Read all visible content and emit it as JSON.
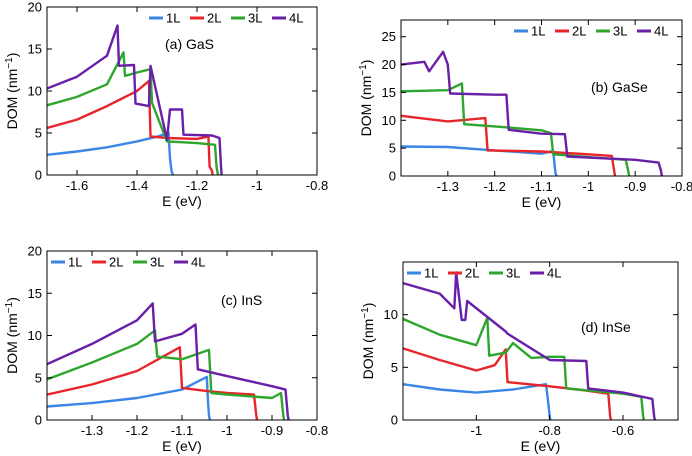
{
  "figure": {
    "panel_count": 4
  },
  "chart_data": [
    {
      "type": "line",
      "panel": "(a) GaS",
      "xlabel": "E (eV)",
      "ylabel": "DOM (nm⁻¹)",
      "xlim": [
        -1.7,
        -0.8
      ],
      "ylim": [
        0,
        20
      ],
      "xticks": [
        -1.6,
        -1.4,
        -1.2,
        -1,
        -0.8
      ],
      "xtick_labels": [
        "-1.6",
        "-1.4",
        "-1.2",
        "-1",
        "-0.8"
      ],
      "yticks": [
        0,
        5,
        10,
        15,
        20
      ],
      "ytick_labels": [
        "0",
        "5",
        "10",
        "15",
        "20"
      ],
      "legend_position": "top-right",
      "series": [
        {
          "name": "1L",
          "color": "#3a86e6",
          "x": [
            -1.7,
            -1.6,
            -1.5,
            -1.4,
            -1.33,
            -1.295,
            -1.29,
            -1.285,
            -1.28
          ],
          "y": [
            2.4,
            2.8,
            3.3,
            4.0,
            4.6,
            5.0,
            2.0,
            0.5,
            0
          ]
        },
        {
          "name": "2L",
          "color": "#e8252b",
          "x": [
            -1.7,
            -1.6,
            -1.5,
            -1.4,
            -1.36,
            -1.355,
            -1.3,
            -1.2,
            -1.162,
            -1.158,
            -1.15,
            -1.148
          ],
          "y": [
            5.6,
            6.6,
            8.2,
            10.0,
            11.2,
            4.6,
            4.4,
            4.3,
            4.6,
            1.0,
            0.5,
            0
          ]
        },
        {
          "name": "3L",
          "color": "#2ea62e",
          "x": [
            -1.7,
            -1.6,
            -1.5,
            -1.445,
            -1.44,
            -1.4,
            -1.355,
            -1.35,
            -1.3,
            -1.2,
            -1.14,
            -1.135,
            -1.13
          ],
          "y": [
            8.3,
            9.3,
            10.8,
            14.6,
            11.8,
            12.2,
            12.6,
            8.6,
            4.0,
            3.8,
            3.6,
            1.0,
            0
          ]
        },
        {
          "name": "4L",
          "color": "#6a1fa8",
          "x": [
            -1.7,
            -1.6,
            -1.5,
            -1.465,
            -1.46,
            -1.41,
            -1.405,
            -1.36,
            -1.355,
            -1.3,
            -1.29,
            -1.25,
            -1.245,
            -1.15,
            -1.125,
            -1.12,
            -1.118
          ],
          "y": [
            10.3,
            11.7,
            14.2,
            17.8,
            13.0,
            13.1,
            8.5,
            8.2,
            13.0,
            4.2,
            7.8,
            7.8,
            4.8,
            4.7,
            4.4,
            1.0,
            0
          ]
        }
      ]
    },
    {
      "type": "line",
      "panel": "(b) GaSe",
      "xlabel": "E (eV)",
      "ylabel": "DOM (nm⁻¹)",
      "xlim": [
        -1.4,
        -0.8
      ],
      "ylim": [
        0,
        28
      ],
      "xticks": [
        -1.3,
        -1.2,
        -1.1,
        -1,
        -0.9,
        -0.8
      ],
      "xtick_labels": [
        "-1.3",
        "-1.2",
        "-1.1",
        "-1",
        "-0.9",
        "-0.8"
      ],
      "yticks": [
        0,
        5,
        10,
        15,
        20,
        25
      ],
      "ytick_labels": [
        "0",
        "5",
        "10",
        "15",
        "20",
        "25"
      ],
      "legend_position": "top-right",
      "series": [
        {
          "name": "1L",
          "color": "#3a86e6",
          "x": [
            -1.4,
            -1.3,
            -1.2,
            -1.1,
            -1.075,
            -1.072,
            -1.07,
            -1.068
          ],
          "y": [
            5.3,
            5.2,
            4.6,
            4.0,
            4.5,
            2.0,
            0.5,
            0
          ]
        },
        {
          "name": "2L",
          "color": "#e8252b",
          "x": [
            -1.4,
            -1.3,
            -1.22,
            -1.215,
            -1.1,
            -1.0,
            -0.95,
            -0.945,
            -0.943
          ],
          "y": [
            10.8,
            9.8,
            10.4,
            4.6,
            4.4,
            3.9,
            3.6,
            1.0,
            0
          ]
        },
        {
          "name": "3L",
          "color": "#2ea62e",
          "x": [
            -1.4,
            -1.3,
            -1.27,
            -1.265,
            -1.2,
            -1.1,
            -1.08,
            -1.075,
            -1.0,
            -0.92,
            -0.915,
            -0.913
          ],
          "y": [
            15.2,
            15.4,
            16.6,
            9.3,
            8.9,
            8.2,
            7.7,
            3.9,
            3.4,
            2.9,
            1.0,
            0
          ]
        },
        {
          "name": "4L",
          "color": "#6a1fa8",
          "x": [
            -1.4,
            -1.35,
            -1.34,
            -1.31,
            -1.3,
            -1.295,
            -1.2,
            -1.175,
            -1.17,
            -1.1,
            -1.05,
            -1.045,
            -1.0,
            -0.9,
            -0.85,
            -0.845,
            -0.843
          ],
          "y": [
            20.0,
            20.5,
            18.8,
            22.3,
            20.0,
            14.8,
            14.6,
            14.6,
            8.3,
            7.6,
            7.5,
            3.5,
            3.3,
            2.9,
            2.4,
            1.0,
            0
          ]
        }
      ]
    },
    {
      "type": "line",
      "panel": "(c) InS",
      "xlabel": "E (eV)",
      "ylabel": "DOM (nm⁻¹)",
      "xlim": [
        -1.4,
        -0.8
      ],
      "ylim": [
        0,
        20
      ],
      "xticks": [
        -1.3,
        -1.2,
        -1.1,
        -1,
        -0.9,
        -0.8
      ],
      "xtick_labels": [
        "-1.3",
        "-1.2",
        "-1.1",
        "-1",
        "-0.9",
        "-0.8"
      ],
      "yticks": [
        0,
        5,
        10,
        15,
        20
      ],
      "ytick_labels": [
        "0",
        "5",
        "10",
        "15",
        "20"
      ],
      "legend_position": "top-left",
      "series": [
        {
          "name": "1L",
          "color": "#3a86e6",
          "x": [
            -1.4,
            -1.3,
            -1.2,
            -1.1,
            -1.045,
            -1.042,
            -1.04,
            -1.038
          ],
          "y": [
            1.6,
            2.0,
            2.6,
            3.6,
            5.1,
            2.0,
            0.5,
            0
          ]
        },
        {
          "name": "2L",
          "color": "#e8252b",
          "x": [
            -1.4,
            -1.3,
            -1.2,
            -1.105,
            -1.1,
            -1.04,
            -1.0,
            -0.94,
            -0.935,
            -0.933
          ],
          "y": [
            3.0,
            4.2,
            5.8,
            8.6,
            3.8,
            3.4,
            3.2,
            3.0,
            0.5,
            0
          ]
        },
        {
          "name": "3L",
          "color": "#2ea62e",
          "x": [
            -1.4,
            -1.3,
            -1.2,
            -1.16,
            -1.155,
            -1.1,
            -1.04,
            -1.035,
            -1.0,
            -0.9,
            -0.88,
            -0.875,
            -0.873
          ],
          "y": [
            4.8,
            6.8,
            9.0,
            10.6,
            7.5,
            7.2,
            8.3,
            3.2,
            3.0,
            2.6,
            3.2,
            0.5,
            0
          ]
        },
        {
          "name": "4L",
          "color": "#6a1fa8",
          "x": [
            -1.4,
            -1.3,
            -1.2,
            -1.165,
            -1.16,
            -1.1,
            -1.07,
            -1.065,
            -1.0,
            -0.9,
            -0.87,
            -0.865,
            -0.863
          ],
          "y": [
            6.6,
            9.0,
            11.8,
            13.8,
            9.3,
            10.2,
            11.3,
            6.0,
            5.2,
            4.0,
            3.6,
            0.5,
            0
          ]
        }
      ]
    },
    {
      "type": "line",
      "panel": "(d) InSe",
      "xlabel": "E (eV)",
      "ylabel": "DOM (nm⁻¹)",
      "xlim": [
        -1.2,
        -0.45
      ],
      "ylim": [
        0,
        15
      ],
      "xticks": [
        -1,
        -0.8,
        -0.6
      ],
      "xtick_labels": [
        "-1",
        "-0.8",
        "-0.6"
      ],
      "yticks": [
        0,
        5,
        10
      ],
      "ytick_labels": [
        "0",
        "5",
        "10"
      ],
      "legend_position": "top-left",
      "series": [
        {
          "name": "1L",
          "color": "#3a86e6",
          "x": [
            -1.2,
            -1.1,
            -1.0,
            -0.9,
            -0.81,
            -0.805,
            -0.8,
            -0.798
          ],
          "y": [
            3.4,
            2.9,
            2.6,
            2.9,
            3.4,
            2.0,
            0.3,
            0
          ]
        },
        {
          "name": "2L",
          "color": "#e8252b",
          "x": [
            -1.2,
            -1.1,
            -1.0,
            -0.95,
            -0.92,
            -0.915,
            -0.8,
            -0.7,
            -0.64,
            -0.635,
            -0.633
          ],
          "y": [
            6.8,
            5.7,
            4.7,
            5.2,
            6.7,
            3.6,
            3.2,
            2.8,
            2.5,
            0.3,
            0
          ]
        },
        {
          "name": "3L",
          "color": "#2ea62e",
          "x": [
            -1.2,
            -1.1,
            -1.0,
            -0.97,
            -0.965,
            -0.92,
            -0.9,
            -0.85,
            -0.8,
            -0.76,
            -0.755,
            -0.6,
            -0.55,
            -0.545,
            -0.543
          ],
          "y": [
            9.6,
            8.1,
            7.1,
            9.7,
            6.1,
            6.4,
            7.3,
            5.9,
            6.0,
            6.0,
            3.0,
            2.5,
            2.2,
            0.3,
            0
          ]
        },
        {
          "name": "4L",
          "color": "#6a1fa8",
          "x": [
            -1.2,
            -1.1,
            -1.06,
            -1.055,
            -1.04,
            -1.03,
            -1.025,
            -0.92,
            -0.915,
            -0.8,
            -0.7,
            -0.695,
            -0.6,
            -0.52,
            -0.515,
            -0.513
          ],
          "y": [
            13.0,
            12.0,
            10.6,
            14.0,
            9.5,
            9.5,
            11.3,
            8.4,
            8.2,
            5.7,
            5.6,
            3.0,
            2.6,
            2.0,
            0.3,
            0
          ]
        }
      ]
    }
  ]
}
